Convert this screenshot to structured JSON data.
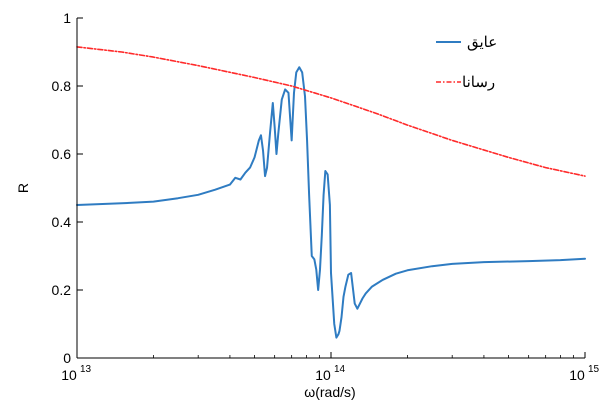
{
  "chart_data": {
    "type": "line",
    "xlabel": "ω(rad/s)",
    "ylabel": "R",
    "x_scale": "log",
    "xlim": [
      10000000000000.0,
      1000000000000000.0
    ],
    "ylim": [
      0,
      1
    ],
    "x_ticks": [
      {
        "value": 10000000000000.0,
        "base": "10",
        "exp": "13"
      },
      {
        "value": 100000000000000.0,
        "base": "10",
        "exp": "14"
      },
      {
        "value": 1000000000000000.0,
        "base": "10",
        "exp": "15"
      }
    ],
    "y_ticks": [
      {
        "value": 0,
        "label": "0"
      },
      {
        "value": 0.2,
        "label": "0.2"
      },
      {
        "value": 0.4,
        "label": "0.4"
      },
      {
        "value": 0.6,
        "label": "0.6"
      },
      {
        "value": 0.8,
        "label": "0.8"
      },
      {
        "value": 1,
        "label": "1"
      }
    ],
    "grid": false,
    "legend_position": "top-right",
    "series": [
      {
        "name": "عایق",
        "color": "#2f7cc2",
        "style": "solid",
        "x": [
          10000000000000.0,
          15000000000000.0,
          20000000000000.0,
          25000000000000.0,
          30000000000000.0,
          35000000000000.0,
          40000000000000.0,
          42000000000000.0,
          44000000000000.0,
          46000000000000.0,
          48000000000000.0,
          50000000000000.0,
          52000000000000.0,
          53000000000000.0,
          54000000000000.0,
          55000000000000.0,
          56000000000000.0,
          57500000000000.0,
          59000000000000.0,
          60000000000000.0,
          61000000000000.0,
          62000000000000.0,
          64000000000000.0,
          66000000000000.0,
          68000000000000.0,
          70000000000000.0,
          71500000000000.0,
          73000000000000.0,
          75000000000000.0,
          77000000000000.0,
          79000000000000.0,
          80500000000000.0,
          82000000000000.0,
          84000000000000.0,
          86000000000000.0,
          87500000000000.0,
          89000000000000.0,
          90500000000000.0,
          92000000000000.0,
          93500000000000.0,
          95000000000000.0,
          97000000000000.0,
          99000000000000.0,
          100000000000000.0,
          103000000000000.0,
          105000000000000.0,
          107000000000000.0,
          108000000000000.0,
          110000000000000.0,
          112000000000000.0,
          114000000000000.0,
          117000000000000.0,
          120000000000000.0,
          124000000000000.0,
          127000000000000.0,
          130000000000000.0,
          133000000000000.0,
          137000000000000.0,
          145000000000000.0,
          160000000000000.0,
          180000000000000.0,
          200000000000000.0,
          250000000000000.0,
          300000000000000.0,
          400000000000000.0,
          600000000000000.0,
          800000000000000.0,
          1000000000000000.0
        ],
        "values": [
          0.45,
          0.455,
          0.46,
          0.47,
          0.48,
          0.495,
          0.51,
          0.53,
          0.525,
          0.545,
          0.56,
          0.59,
          0.64,
          0.655,
          0.61,
          0.535,
          0.56,
          0.66,
          0.75,
          0.68,
          0.6,
          0.66,
          0.76,
          0.79,
          0.78,
          0.64,
          0.78,
          0.84,
          0.855,
          0.84,
          0.77,
          0.64,
          0.48,
          0.3,
          0.29,
          0.26,
          0.2,
          0.26,
          0.36,
          0.48,
          0.55,
          0.54,
          0.45,
          0.25,
          0.1,
          0.06,
          0.07,
          0.08,
          0.12,
          0.18,
          0.21,
          0.245,
          0.25,
          0.16,
          0.145,
          0.16,
          0.175,
          0.19,
          0.21,
          0.23,
          0.248,
          0.258,
          0.27,
          0.277,
          0.282,
          0.285,
          0.288,
          0.292
        ]
      },
      {
        "name": "رسانا",
        "color": "#ff2a2a",
        "style": "dash-dot",
        "x": [
          10000000000000.0,
          15000000000000.0,
          20000000000000.0,
          30000000000000.0,
          50000000000000.0,
          70000000000000.0,
          100000000000000.0,
          150000000000000.0,
          200000000000000.0,
          300000000000000.0,
          500000000000000.0,
          700000000000000.0,
          1000000000000000.0
        ],
        "values": [
          0.915,
          0.9,
          0.885,
          0.86,
          0.825,
          0.8,
          0.765,
          0.72,
          0.685,
          0.64,
          0.59,
          0.56,
          0.535
        ]
      }
    ]
  }
}
